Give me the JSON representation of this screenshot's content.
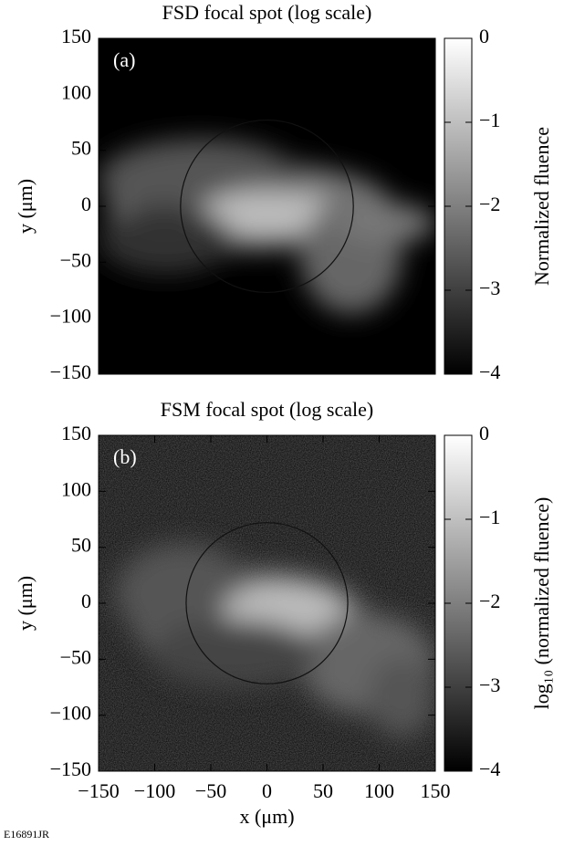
{
  "chart_data": [
    {
      "type": "heatmap",
      "title": "FSD focal spot (log scale)",
      "annotation": "(a)",
      "ylabel": "y (μm)",
      "colorbar_label": "Normalized fluence",
      "colormap": "gray",
      "xlim": [
        -150,
        150
      ],
      "ylim": [
        -150,
        150
      ],
      "xticks": [
        -150,
        -100,
        -50,
        0,
        50,
        100,
        150
      ],
      "yticks": [
        {
          "value": -150,
          "label": "−150"
        },
        {
          "value": -100,
          "label": "−100"
        },
        {
          "value": -50,
          "label": "−50"
        },
        0,
        50,
        100,
        150
      ],
      "clim": [
        -4,
        0
      ],
      "cticks": [
        {
          "value": -4,
          "label": "−4"
        },
        {
          "value": -3,
          "label": "−3"
        },
        {
          "value": -2,
          "label": "−2"
        },
        {
          "value": -1,
          "label": "−1"
        },
        0
      ],
      "circle": {
        "x": 0,
        "y": 0,
        "r": 77
      }
    },
    {
      "type": "heatmap",
      "title": "FSM focal spot (log scale)",
      "annotation": "(b)",
      "xlabel": "x (μm)",
      "ylabel": "y (μm)",
      "colorbar_label": "log₁₀ (normalized fluence)",
      "colormap": "gray",
      "xlim": [
        -150,
        150
      ],
      "ylim": [
        -150,
        150
      ],
      "xticks": [
        {
          "value": -150,
          "label": "−150"
        },
        {
          "value": -100,
          "label": "−100"
        },
        {
          "value": -50,
          "label": "−50"
        },
        0,
        50,
        100,
        150
      ],
      "yticks": [
        {
          "value": -150,
          "label": "−150"
        },
        {
          "value": -100,
          "label": "−100"
        },
        {
          "value": -50,
          "label": "−50"
        },
        0,
        50,
        100,
        150
      ],
      "clim": [
        -4,
        0
      ],
      "cticks": [
        {
          "value": -4,
          "label": "−4"
        },
        {
          "value": -3,
          "label": "−3"
        },
        {
          "value": -2,
          "label": "−2"
        },
        {
          "value": -1,
          "label": "−1"
        },
        0
      ],
      "circle": {
        "x": 0,
        "y": 0,
        "r": 72
      }
    }
  ],
  "figure_id": "E16891JR"
}
